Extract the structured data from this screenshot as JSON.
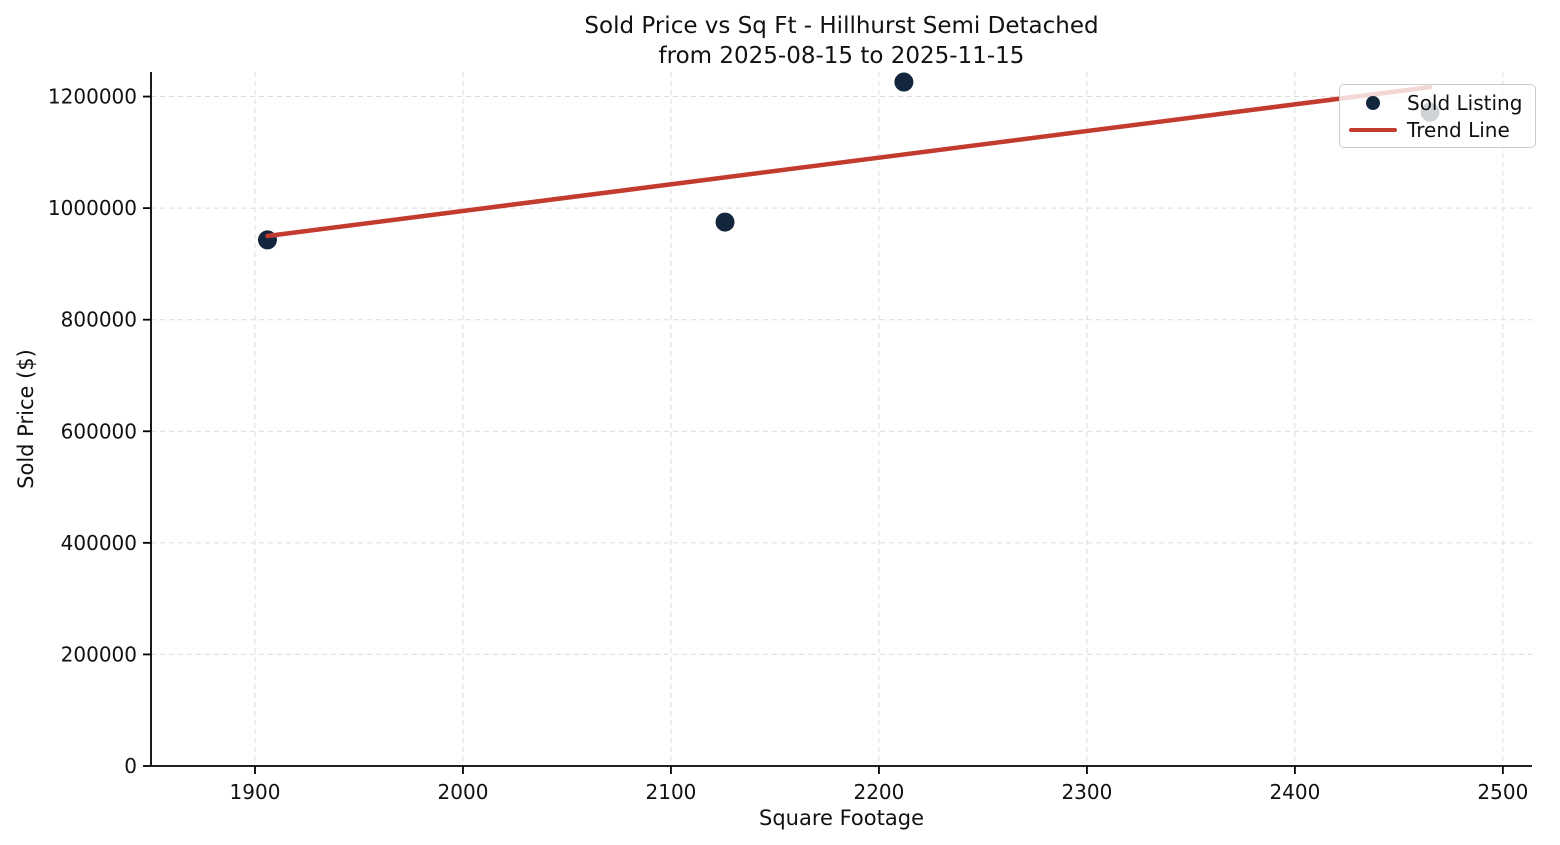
{
  "chart": {
    "title": "Sold Price vs Sq Ft - Hillhurst Semi Detached",
    "subtitle": "from 2025-08-15 to 2025-11-15",
    "xlabel": "Square Footage",
    "ylabel": "Sold Price ($)"
  },
  "legend": {
    "items": [
      {
        "label": "Sold Listing"
      },
      {
        "label": "Trend Line"
      }
    ]
  },
  "chart_data": {
    "type": "scatter",
    "title": "Sold Price vs Sq Ft - Hillhurst Semi Detached\nfrom 2025-08-15 to 2025-11-15",
    "xlabel": "Square Footage",
    "ylabel": "Sold Price ($)",
    "series": [
      {
        "name": "Sold Listing",
        "type": "scatter",
        "points": [
          {
            "x": 1906,
            "y": 943000
          },
          {
            "x": 2126,
            "y": 975000
          },
          {
            "x": 2212,
            "y": 1226000
          },
          {
            "x": 2465,
            "y": 1172000
          }
        ]
      },
      {
        "name": "Trend Line",
        "type": "line",
        "points": [
          {
            "x": 1906,
            "y": 950000
          },
          {
            "x": 2465,
            "y": 1217000
          }
        ]
      }
    ],
    "x_ticks": [
      1900,
      2000,
      2100,
      2200,
      2300,
      2400,
      2500
    ],
    "y_ticks": [
      0,
      200000,
      400000,
      600000,
      800000,
      1000000,
      1200000
    ],
    "xlim": [
      1850,
      2514
    ],
    "ylim": [
      0,
      1244000
    ],
    "grid": true,
    "grid_style": "dashed",
    "legend_position": "upper right",
    "colors": {
      "point": "#13263d",
      "trend": "#c23b2e",
      "grid": "#dcdcdc",
      "axis": "#000000",
      "legend_bg": "rgba(255,255,255,0.8)",
      "legend_border": "#cccccc"
    }
  }
}
